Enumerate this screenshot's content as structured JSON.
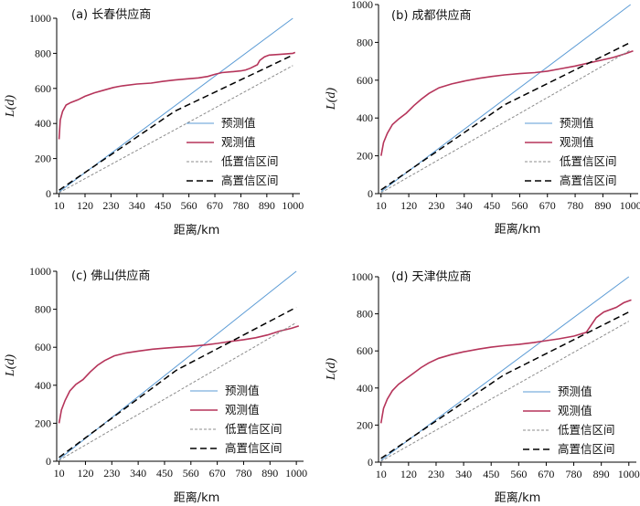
{
  "colors": {
    "predicted": "#5b9bd5",
    "observed": "#b5345a",
    "low": "#8c8c8c",
    "high": "#000000"
  },
  "chart_data": [
    {
      "type": "line",
      "title": "(a) 长春供应商",
      "xlabel": "距离/km",
      "ylabel": "L(d)",
      "xlim": [
        0,
        1030
      ],
      "ylim": [
        0,
        1000
      ],
      "x_ticks": [
        "10",
        "120",
        "230",
        "340",
        "450",
        "560",
        "670",
        "780",
        "890",
        "1000"
      ],
      "y_ticks": [
        "0",
        "200",
        "400",
        "600",
        "800",
        "1000"
      ],
      "legend_position": "bottom-right",
      "series": [
        {
          "name": "预测值",
          "style": "solid",
          "color": "#5b9bd5",
          "x": [
            10,
            1000
          ],
          "y": [
            10,
            1000
          ]
        },
        {
          "name": "观测值",
          "style": "solid",
          "color": "#b5345a",
          "x": [
            10,
            15,
            25,
            40,
            60,
            90,
            120,
            160,
            200,
            240,
            280,
            340,
            400,
            450,
            500,
            560,
            600,
            640,
            670,
            700,
            740,
            780,
            800,
            820,
            850,
            860,
            880,
            900,
            950,
            1000,
            1010
          ],
          "y": [
            310,
            420,
            470,
            505,
            520,
            535,
            555,
            575,
            590,
            605,
            615,
            625,
            630,
            640,
            648,
            655,
            660,
            668,
            680,
            690,
            695,
            700,
            705,
            715,
            735,
            760,
            780,
            790,
            795,
            800,
            805
          ]
        },
        {
          "name": "低置信区间",
          "style": "dotted",
          "color": "#8c8c8c",
          "x": [
            10,
            1000
          ],
          "y": [
            5,
            730
          ]
        },
        {
          "name": "高置信区间",
          "style": "dashed",
          "color": "#000000",
          "x": [
            10,
            500,
            1000
          ],
          "y": [
            20,
            470,
            790
          ]
        }
      ]
    },
    {
      "type": "line",
      "title": "(b) 成都供应商",
      "xlabel": "距离/km",
      "ylabel": "L(d)",
      "xlim": [
        0,
        1030
      ],
      "ylim": [
        0,
        1000
      ],
      "x_ticks": [
        "10",
        "120",
        "230",
        "340",
        "450",
        "560",
        "670",
        "780",
        "890",
        "1000"
      ],
      "y_ticks": [
        "0",
        "200",
        "400",
        "600",
        "800",
        "1000"
      ],
      "legend_position": "bottom-right",
      "series": [
        {
          "name": "预测值",
          "style": "solid",
          "color": "#5b9bd5",
          "x": [
            10,
            1000
          ],
          "y": [
            10,
            1000
          ]
        },
        {
          "name": "观测值",
          "style": "solid",
          "color": "#b5345a",
          "x": [
            10,
            20,
            35,
            55,
            80,
            110,
            140,
            170,
            200,
            240,
            290,
            340,
            400,
            450,
            500,
            560,
            620,
            670,
            720,
            780,
            830,
            880,
            930,
            980,
            1010
          ],
          "y": [
            200,
            270,
            320,
            365,
            395,
            425,
            465,
            500,
            530,
            560,
            580,
            595,
            610,
            620,
            628,
            635,
            640,
            648,
            660,
            675,
            690,
            705,
            720,
            740,
            755
          ]
        },
        {
          "name": "低置信区间",
          "style": "dotted",
          "color": "#8c8c8c",
          "x": [
            10,
            1000
          ],
          "y": [
            5,
            760
          ]
        },
        {
          "name": "高置信区间",
          "style": "dashed",
          "color": "#000000",
          "x": [
            10,
            500,
            1000
          ],
          "y": [
            20,
            470,
            800
          ]
        }
      ]
    },
    {
      "type": "line",
      "title": "(c) 佛山供应商",
      "xlabel": "距离/km",
      "ylabel": "L(d)",
      "xlim": [
        0,
        1030
      ],
      "ylim": [
        0,
        1000
      ],
      "x_ticks": [
        "10",
        "120",
        "230",
        "340",
        "450",
        "560",
        "670",
        "780",
        "890",
        "1000"
      ],
      "y_ticks": [
        "0",
        "200",
        "400",
        "600",
        "800",
        "1000"
      ],
      "legend_position": "bottom-right",
      "series": [
        {
          "name": "预测值",
          "style": "solid",
          "color": "#5b9bd5",
          "x": [
            10,
            1000
          ],
          "y": [
            10,
            1000
          ]
        },
        {
          "name": "观测值",
          "style": "solid",
          "color": "#b5345a",
          "x": [
            10,
            20,
            35,
            55,
            80,
            110,
            140,
            170,
            200,
            240,
            290,
            340,
            400,
            450,
            500,
            560,
            620,
            670,
            720,
            780,
            830,
            880,
            930,
            980,
            1010
          ],
          "y": [
            200,
            270,
            320,
            370,
            405,
            430,
            470,
            505,
            530,
            555,
            570,
            580,
            590,
            595,
            600,
            605,
            612,
            620,
            630,
            640,
            650,
            665,
            685,
            700,
            712
          ]
        },
        {
          "name": "低置信区间",
          "style": "dotted",
          "color": "#8c8c8c",
          "x": [
            10,
            1000
          ],
          "y": [
            5,
            730
          ]
        },
        {
          "name": "高置信区间",
          "style": "dashed",
          "color": "#000000",
          "x": [
            10,
            500,
            1000
          ],
          "y": [
            20,
            480,
            810
          ]
        }
      ]
    },
    {
      "type": "line",
      "title": "(d) 天津供应商",
      "xlabel": "距离/km",
      "ylabel": "L(d)",
      "xlim": [
        0,
        1030
      ],
      "ylim": [
        0,
        1000
      ],
      "x_ticks": [
        "10",
        "120",
        "230",
        "340",
        "450",
        "560",
        "670",
        "780",
        "890",
        "1000"
      ],
      "y_ticks": [
        "0",
        "200",
        "400",
        "600",
        "800",
        "1000"
      ],
      "legend_position": "bottom-right",
      "series": [
        {
          "name": "预测值",
          "style": "solid",
          "color": "#5b9bd5",
          "x": [
            10,
            1000
          ],
          "y": [
            10,
            1000
          ]
        },
        {
          "name": "观测值",
          "style": "solid",
          "color": "#b5345a",
          "x": [
            10,
            20,
            35,
            55,
            80,
            110,
            140,
            170,
            200,
            240,
            290,
            340,
            400,
            450,
            500,
            560,
            620,
            670,
            720,
            780,
            830,
            850,
            870,
            900,
            950,
            980,
            1000,
            1010
          ],
          "y": [
            210,
            290,
            340,
            385,
            420,
            450,
            480,
            510,
            535,
            560,
            580,
            595,
            610,
            620,
            628,
            635,
            645,
            655,
            665,
            680,
            700,
            740,
            780,
            810,
            835,
            860,
            870,
            875
          ]
        },
        {
          "name": "低置信区间",
          "style": "dotted",
          "color": "#8c8c8c",
          "x": [
            10,
            1000
          ],
          "y": [
            5,
            760
          ]
        },
        {
          "name": "高置信区间",
          "style": "dashed",
          "color": "#000000",
          "x": [
            10,
            500,
            1000
          ],
          "y": [
            20,
            470,
            810
          ]
        }
      ]
    }
  ]
}
